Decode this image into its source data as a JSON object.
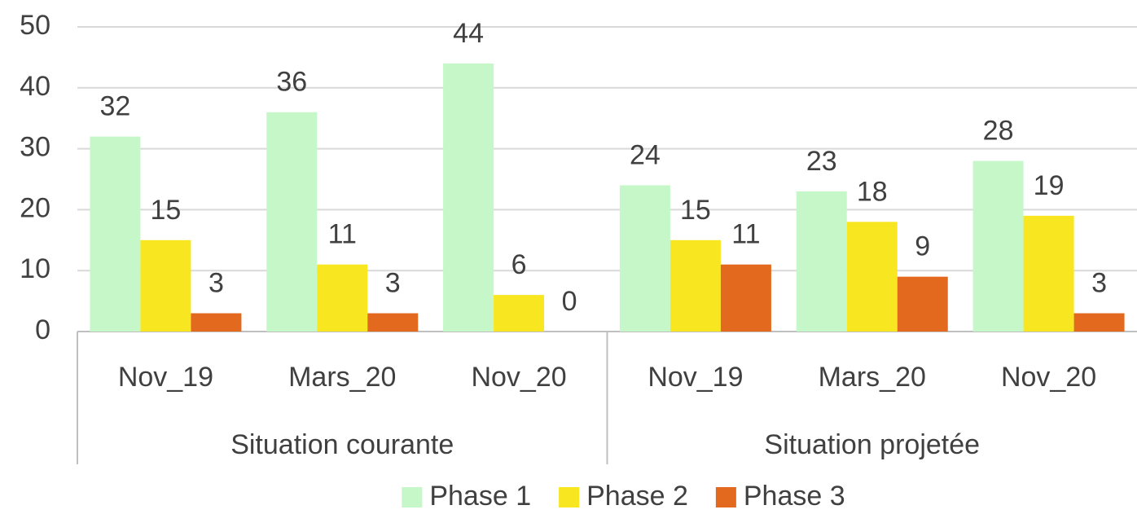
{
  "chart_data": {
    "type": "bar",
    "category_groups": [
      {
        "name": "Situation courante",
        "categories": [
          "Nov_19",
          "Mars_20",
          "Nov_20"
        ]
      },
      {
        "name": "Situation projetée",
        "categories": [
          "Nov_19",
          "Mars_20",
          "Nov_20"
        ]
      }
    ],
    "series": [
      {
        "name": "Phase 1",
        "color": "#c6f7c9",
        "values": [
          32,
          36,
          44,
          24,
          23,
          28
        ]
      },
      {
        "name": "Phase 2",
        "color": "#f7e620",
        "values": [
          15,
          11,
          6,
          15,
          18,
          19
        ]
      },
      {
        "name": "Phase 3",
        "color": "#e2691e",
        "values": [
          3,
          3,
          0,
          11,
          9,
          3
        ]
      }
    ],
    "ylim": [
      0,
      50
    ],
    "yticks": [
      0,
      10,
      20,
      30,
      40,
      50
    ],
    "grid": true,
    "legend": "bottom"
  }
}
